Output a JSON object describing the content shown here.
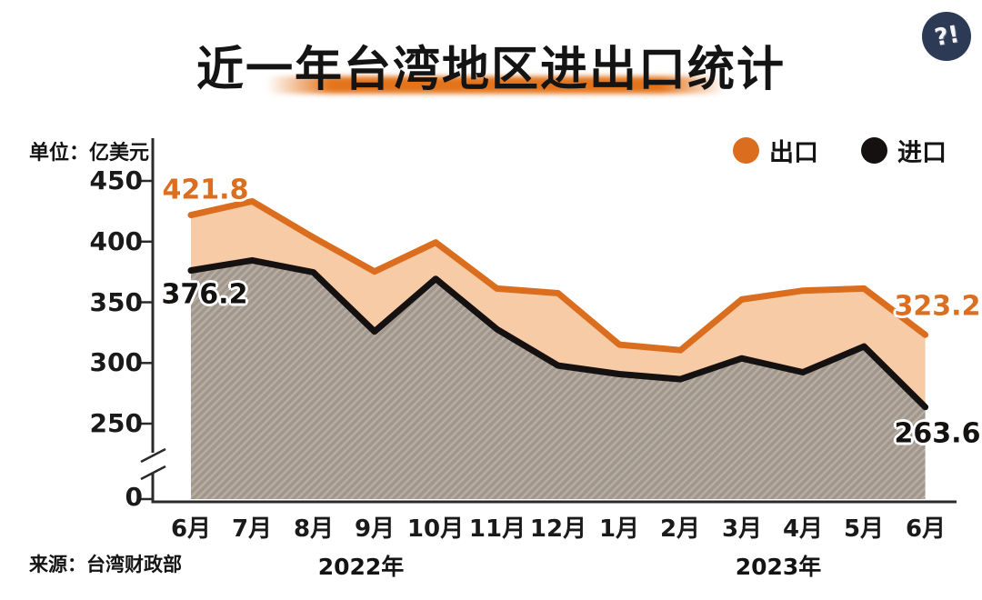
{
  "page": {
    "title": "近一年台湾地区进出口统计",
    "unit_label": "单位：亿美元",
    "source_label": "来源：台湾财政部",
    "logo_glyph": "?!"
  },
  "legend": {
    "export_label": "出口",
    "import_label": "进口"
  },
  "colors": {
    "export_line": "#DB6E1E",
    "export_fill": "#F7CBA5",
    "import_line": "#161111",
    "import_fill": "#A79C91",
    "import_fill_weave": "rgba(255,255,255,0.25)",
    "axis": "#2a2a2a",
    "title_underline": "#E4741C",
    "logo_bg": "#2C3A55",
    "label_orange": "#DC6E20",
    "label_black": "#141210"
  },
  "chart_data": {
    "type": "area",
    "title": "近一年台湾地区进出口统计",
    "unit": "亿美元",
    "x": [
      "6月",
      "7月",
      "8月",
      "9月",
      "10月",
      "11月",
      "12月",
      "1月",
      "2月",
      "3月",
      "4月",
      "5月",
      "6月"
    ],
    "year_groups": [
      {
        "label": "2022年",
        "months": 7
      },
      {
        "label": "2023年",
        "months": 6
      }
    ],
    "series": [
      {
        "name": "出口",
        "color": "#DB6E1E",
        "values": [
          421.8,
          433.2,
          403.4,
          375.3,
          399.3,
          361.3,
          357.5,
          315.1,
          310.5,
          352.3,
          359.6,
          361.3,
          323.2
        ]
      },
      {
        "name": "进口",
        "color": "#161111",
        "values": [
          376.2,
          384.5,
          374.7,
          325.9,
          369.3,
          327.8,
          297.9,
          290.8,
          286.6,
          303.8,
          292.3,
          313.6,
          263.6
        ]
      }
    ],
    "y_ticks": [
      450,
      400,
      350,
      300,
      250,
      0
    ],
    "y_axis_break": true,
    "ylim_display": [
      250,
      450
    ],
    "legend_position": "top-right",
    "grid": false,
    "labeled_points": {
      "export_first": 421.8,
      "import_first": 376.2,
      "export_last": 323.2,
      "import_last": 263.6
    }
  }
}
